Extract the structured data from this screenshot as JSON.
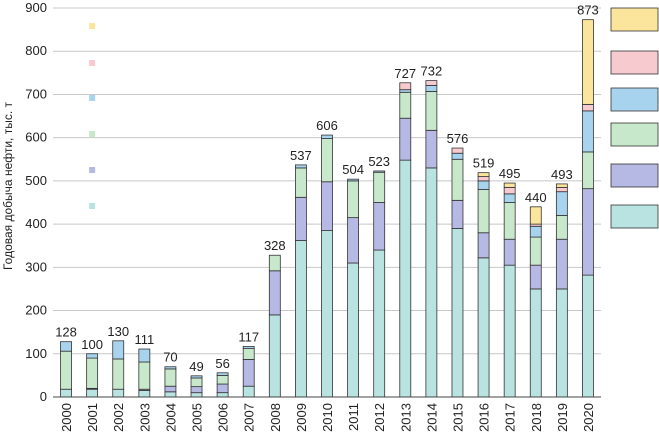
{
  "chart_data": {
    "type": "bar",
    "stacked": true,
    "title": "",
    "xlabel": "",
    "ylabel": "Годовая добыча нефти, тыс. т",
    "ylim": [
      0,
      900
    ],
    "yticks": [
      0,
      100,
      200,
      300,
      400,
      500,
      600,
      700,
      800,
      900
    ],
    "grid": false,
    "legend_position": "right",
    "categories": [
      "2000",
      "2001",
      "2002",
      "2003",
      "2004",
      "2005",
      "2006",
      "2007",
      "2008",
      "2009",
      "2010",
      "2011",
      "2012",
      "2013",
      "2014",
      "2015",
      "2016",
      "2017",
      "2018",
      "2019",
      "2020"
    ],
    "totals": [
      128,
      100,
      130,
      111,
      70,
      49,
      56,
      117,
      328,
      537,
      606,
      504,
      523,
      727,
      732,
      576,
      519,
      495,
      440,
      493,
      873
    ],
    "show_total_labels": [
      true,
      true,
      true,
      true,
      true,
      true,
      true,
      true,
      true,
      true,
      true,
      true,
      true,
      true,
      true,
      true,
      true,
      true,
      true,
      true,
      true
    ],
    "series": [
      {
        "color": "#b9e3e1",
        "values": [
          18,
          18,
          18,
          15,
          12,
          10,
          10,
          25,
          190,
          362,
          385,
          310,
          340,
          548,
          530,
          390,
          322,
          305,
          250,
          250,
          282
        ]
      },
      {
        "color": "#b6b9e3",
        "values": [
          0,
          2,
          0,
          3,
          13,
          14,
          20,
          62,
          102,
          100,
          113,
          105,
          110,
          97,
          87,
          65,
          58,
          60,
          55,
          115,
          200
        ]
      },
      {
        "color": "#c8e8cc",
        "values": [
          88,
          70,
          70,
          63,
          40,
          20,
          20,
          25,
          36,
          68,
          100,
          85,
          70,
          60,
          90,
          95,
          100,
          85,
          65,
          55,
          85
        ]
      },
      {
        "color": "#a8d3ef",
        "values": [
          22,
          10,
          42,
          30,
          5,
          5,
          6,
          5,
          0,
          7,
          8,
          4,
          3,
          6,
          14,
          14,
          20,
          20,
          25,
          55,
          95
        ]
      },
      {
        "color": "#f7cad0",
        "values": [
          0,
          0,
          0,
          0,
          0,
          0,
          0,
          0,
          0,
          0,
          0,
          0,
          0,
          16,
          11,
          12,
          10,
          15,
          5,
          10,
          15
        ]
      },
      {
        "color": "#fbe59d",
        "values": [
          0,
          0,
          0,
          0,
          0,
          0,
          0,
          0,
          0,
          0,
          0,
          0,
          0,
          0,
          0,
          0,
          9,
          10,
          40,
          8,
          196
        ]
      }
    ]
  }
}
